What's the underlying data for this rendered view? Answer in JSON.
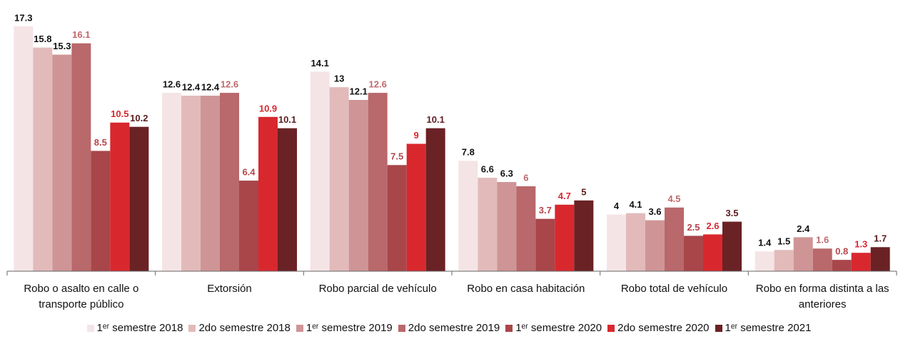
{
  "chart_data": {
    "type": "bar",
    "categories": [
      "Robo o asalto en calle o transporte público",
      "Extorsión",
      "Robo parcial de vehículo",
      "Robo en casa habitación",
      "Robo total de vehículo",
      "Robo en forma distinta a las anteriores"
    ],
    "series": [
      {
        "name": "1ᵉʳ semestre 2018",
        "color": "#f5e4e6",
        "label_color": "#111111",
        "values": [
          17.3,
          12.6,
          14.1,
          7.8,
          4.0,
          1.4
        ]
      },
      {
        "name": "2do semestre 2018",
        "color": "#e2baba",
        "label_color": "#111111",
        "values": [
          15.8,
          12.4,
          13.0,
          6.6,
          4.1,
          1.5
        ]
      },
      {
        "name": "1ᵉʳ semestre 2019",
        "color": "#cf9596",
        "label_color": "#111111",
        "values": [
          15.3,
          12.4,
          12.1,
          6.3,
          3.6,
          2.4
        ]
      },
      {
        "name": "2do semestre 2019",
        "color": "#b9686b",
        "label_color": "#c0686b",
        "values": [
          16.1,
          12.6,
          12.6,
          6.0,
          4.5,
          1.6
        ]
      },
      {
        "name": "1ᵉʳ semestre 2020",
        "color": "#a8464a",
        "label_color": "#b5454a",
        "values": [
          8.5,
          6.4,
          7.5,
          3.7,
          2.5,
          0.8
        ]
      },
      {
        "name": "2do semestre 2020",
        "color": "#d8282e",
        "label_color": "#d8282e",
        "values": [
          10.5,
          10.9,
          9.0,
          4.7,
          2.6,
          1.3
        ]
      },
      {
        "name": "1ᵉʳ semestre 2021",
        "color": "#6a2225",
        "label_color": "#5a1c1f",
        "values": [
          10.2,
          10.1,
          10.1,
          5.0,
          3.5,
          1.7
        ]
      }
    ],
    "ylim": [
      0,
      18
    ],
    "legend": "bottom"
  }
}
